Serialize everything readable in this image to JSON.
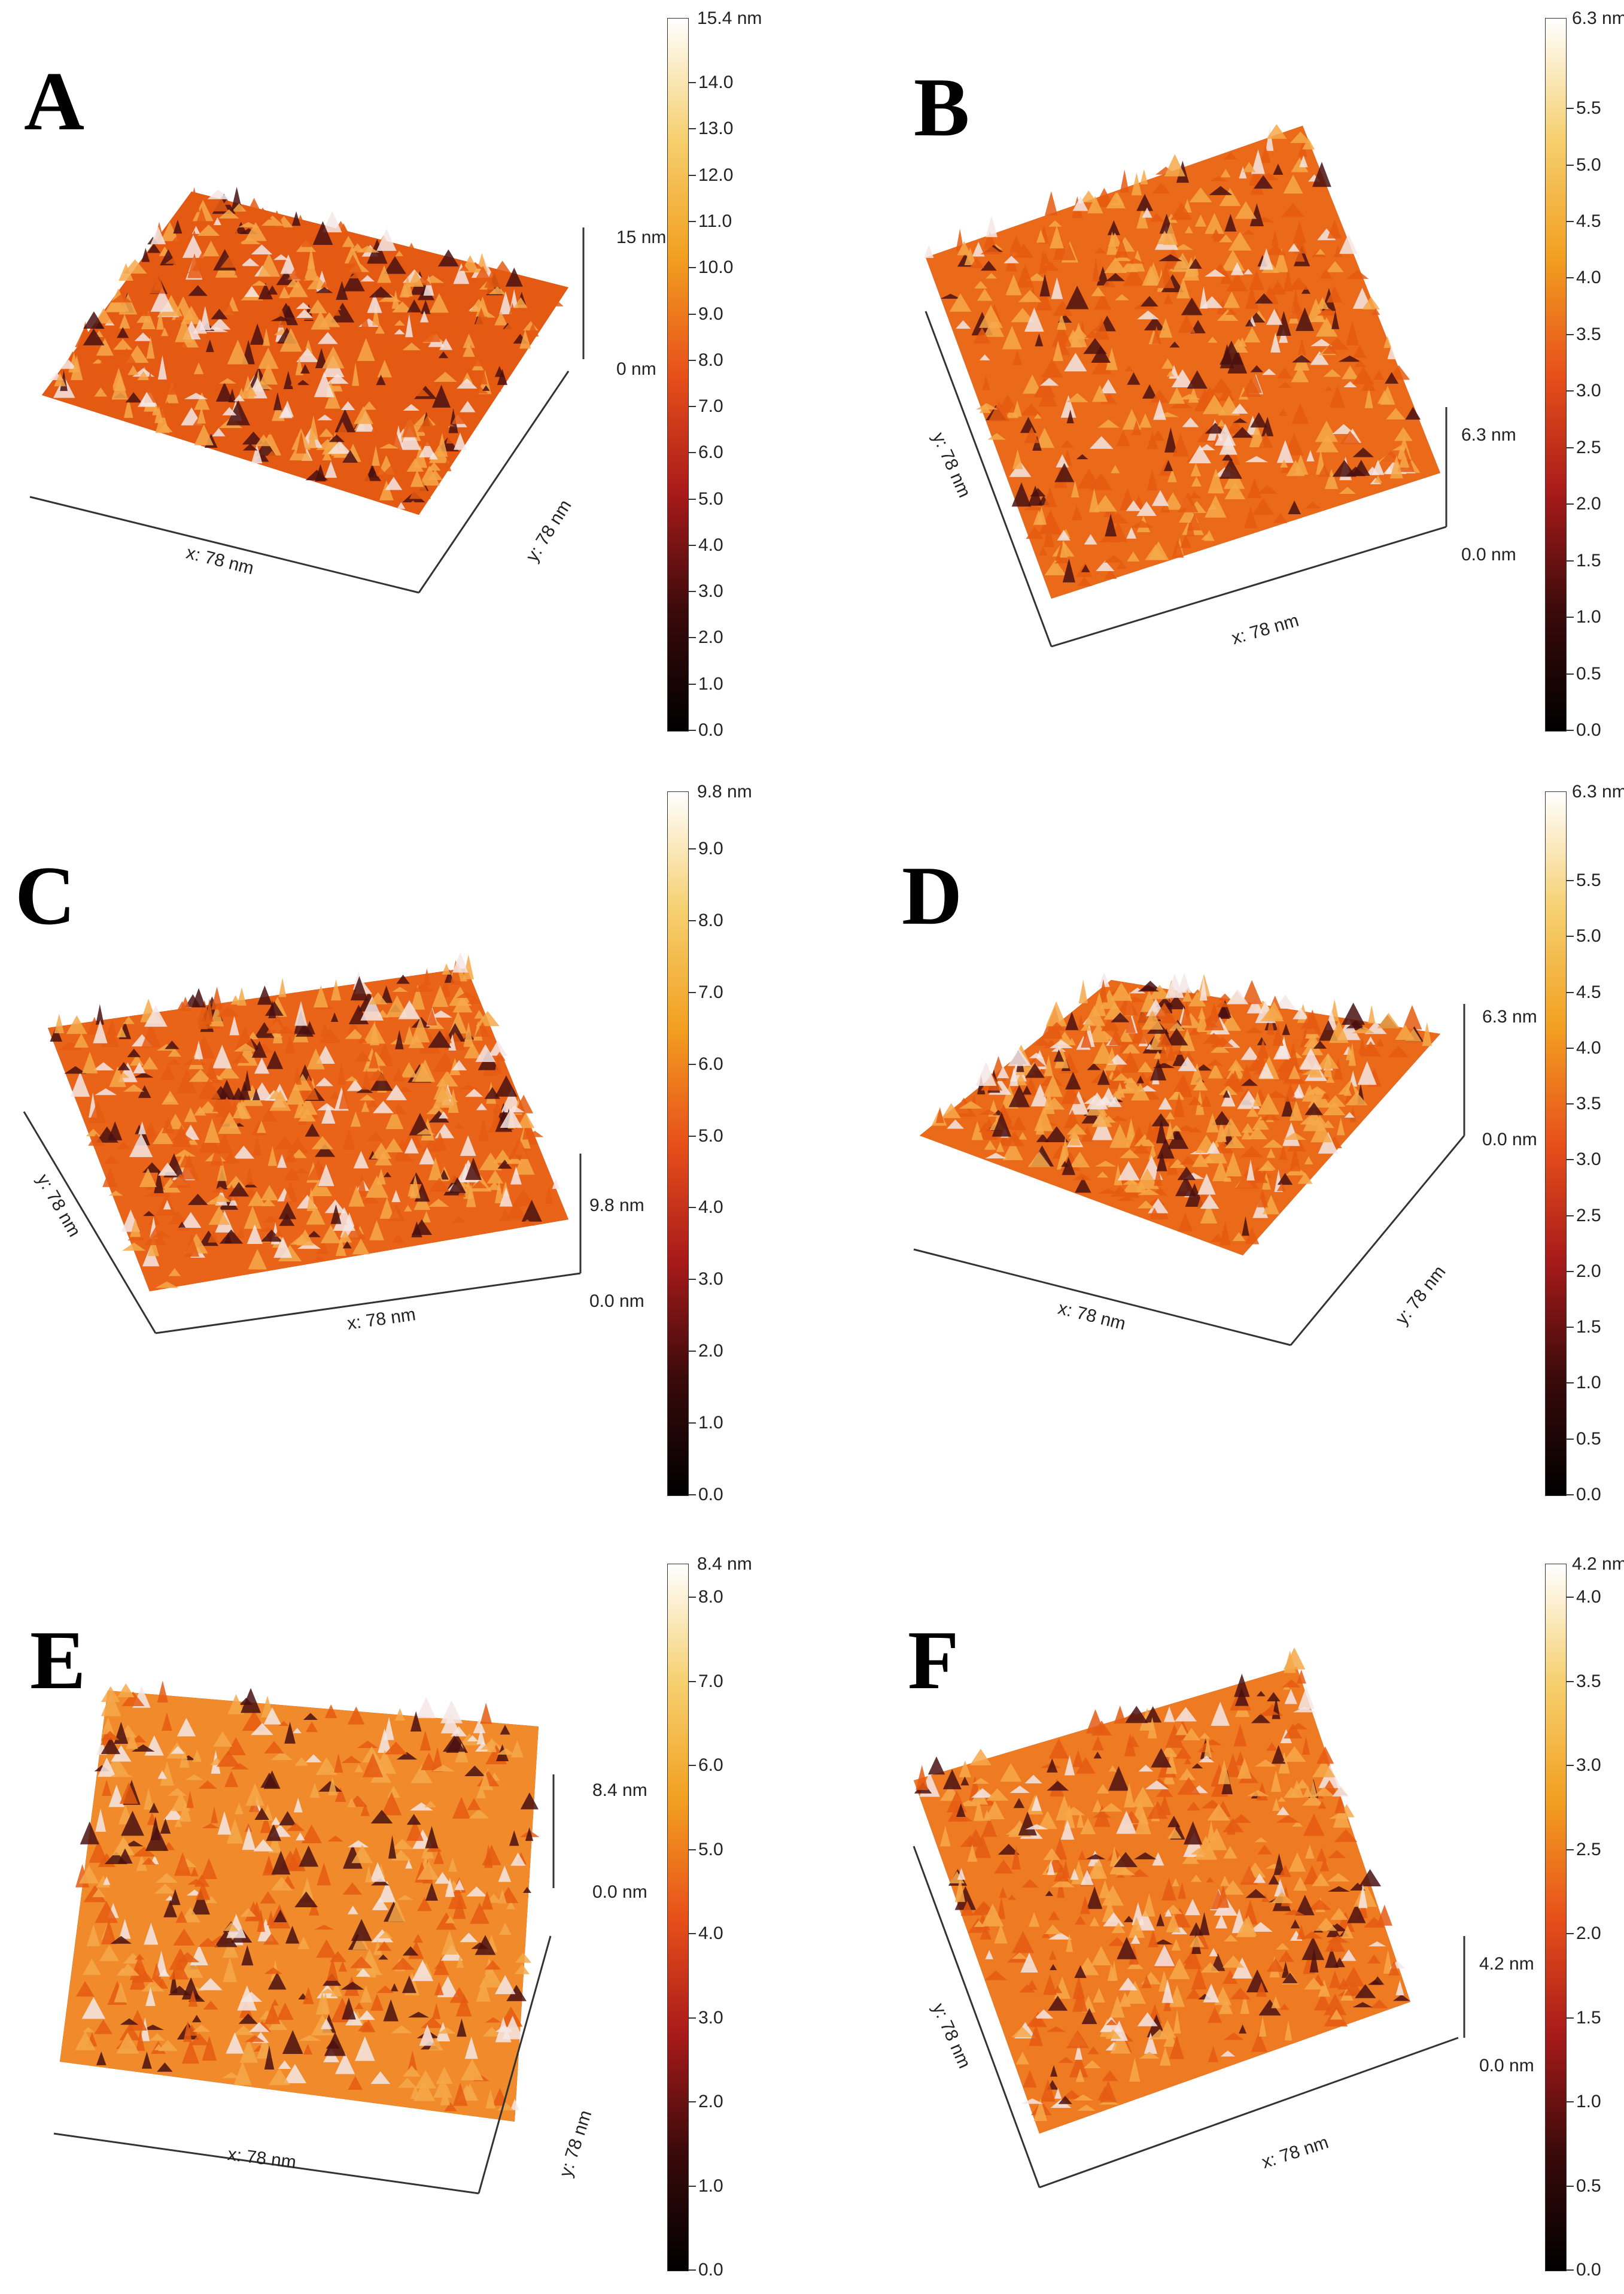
{
  "colors": {
    "surface_dark": "#4a1010",
    "surface_mid": "#e55a12",
    "surface_light": "#f6a84a",
    "surface_peak": "#f4e7e6",
    "colorbar_stops": [
      "#000000",
      "#3a0a0a",
      "#a81a1a",
      "#e8501a",
      "#f2a020",
      "#f6d070",
      "#ffffff"
    ]
  },
  "panels": [
    {
      "letter": "A",
      "x_label": "x: 78 nm",
      "y_label": "y: 78 nm",
      "height_top": "15 nm",
      "height_bottom": "0 nm",
      "colorbar_max": "15.4 nm",
      "colorbar_ticks": [
        "14.0",
        "13.0",
        "12.0",
        "11.0",
        "10.0",
        "9.0",
        "8.0",
        "7.0",
        "6.0",
        "5.0",
        "4.0",
        "3.0",
        "2.0",
        "1.0",
        "0.0"
      ]
    },
    {
      "letter": "B",
      "x_label": "x: 78 nm",
      "y_label": "y: 78 nm",
      "height_top": "6.3 nm",
      "height_bottom": "0.0 nm",
      "colorbar_max": "6.3 nm",
      "colorbar_ticks": [
        "5.5",
        "5.0",
        "4.5",
        "4.0",
        "3.5",
        "3.0",
        "2.5",
        "2.0",
        "1.5",
        "1.0",
        "0.5",
        "0.0"
      ]
    },
    {
      "letter": "C",
      "x_label": "x: 78 nm",
      "y_label": "y: 78 nm",
      "height_top": "9.8 nm",
      "height_bottom": "0.0 nm",
      "colorbar_max": "9.8 nm",
      "colorbar_ticks": [
        "9.0",
        "8.0",
        "7.0",
        "6.0",
        "5.0",
        "4.0",
        "3.0",
        "2.0",
        "1.0",
        "0.0"
      ]
    },
    {
      "letter": "D",
      "x_label": "x: 78 nm",
      "y_label": "y: 78 nm",
      "height_top": "6.3 nm",
      "height_bottom": "0.0 nm",
      "colorbar_max": "6.3 nm",
      "colorbar_ticks": [
        "5.5",
        "5.0",
        "4.5",
        "4.0",
        "3.5",
        "3.0",
        "2.5",
        "2.0",
        "1.5",
        "1.0",
        "0.5",
        "0.0"
      ]
    },
    {
      "letter": "E",
      "x_label": "x: 78 nm",
      "y_label": "y: 78 nm",
      "height_top": "8.4 nm",
      "height_bottom": "0.0 nm",
      "colorbar_max": "8.4 nm",
      "colorbar_ticks": [
        "8.0",
        "7.0",
        "6.0",
        "5.0",
        "4.0",
        "3.0",
        "2.0",
        "1.0",
        "0.0"
      ]
    },
    {
      "letter": "F",
      "x_label": "x: 78 nm",
      "y_label": "y: 78 nm",
      "height_top": "4.2 nm",
      "height_bottom": "0.0 nm",
      "colorbar_max": "4.2 nm",
      "colorbar_ticks": [
        "4.0",
        "3.5",
        "3.0",
        "2.5",
        "2.0",
        "1.5",
        "1.0",
        "0.5",
        "0.0"
      ]
    }
  ]
}
